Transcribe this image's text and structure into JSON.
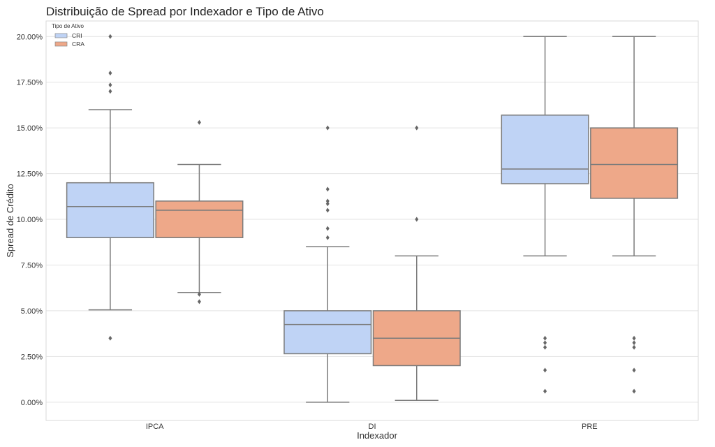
{
  "chart_data": {
    "type": "box",
    "title": "Distribuição de Spread por Indexador e Tipo de Ativo",
    "xlabel": "Indexador",
    "ylabel": "Spread de Crédito",
    "categories": [
      "IPCA",
      "DI",
      "PRE"
    ],
    "ylim": [
      -1.0,
      20.85
    ],
    "yticks": [
      0,
      2.5,
      5,
      7.5,
      10,
      12.5,
      15,
      17.5,
      20
    ],
    "ytick_labels": [
      "0.00%",
      "2.50%",
      "5.00%",
      "7.50%",
      "10.00%",
      "12.50%",
      "15.00%",
      "17.50%",
      "20.00%"
    ],
    "grid": "horizontal",
    "legend": {
      "title": "Tipo de Ativo",
      "placement": "top-left"
    },
    "series": [
      {
        "name": "CRI",
        "color": "#bfd3f5",
        "boxes": [
          {
            "whislo": 5.05,
            "q1": 9.0,
            "med": 10.7,
            "q3": 12.0,
            "whishi": 16.0,
            "fliers": [
              3.5,
              17.0,
              17.35,
              18.0,
              20.0
            ]
          },
          {
            "whislo": 0.0,
            "q1": 2.65,
            "med": 4.25,
            "q3": 5.0,
            "whishi": 8.5,
            "fliers": [
              9.0,
              9.5,
              10.5,
              10.85,
              11.0,
              11.65,
              15.0
            ]
          },
          {
            "whislo": 8.0,
            "q1": 11.95,
            "med": 12.75,
            "q3": 15.7,
            "whishi": 20.0,
            "fliers": [
              0.6,
              1.75,
              3.0,
              3.25,
              3.5
            ]
          }
        ]
      },
      {
        "name": "CRA",
        "color": "#eea889",
        "boxes": [
          {
            "whislo": 6.0,
            "q1": 9.0,
            "med": 10.5,
            "q3": 11.0,
            "whishi": 13.0,
            "fliers": [
              5.5,
              5.9,
              15.3
            ]
          },
          {
            "whislo": 0.1,
            "q1": 2.0,
            "med": 3.5,
            "q3": 5.0,
            "whishi": 8.0,
            "fliers": [
              10.0,
              15.0
            ]
          },
          {
            "whislo": 8.0,
            "q1": 11.15,
            "med": 13.0,
            "q3": 15.0,
            "whishi": 20.0,
            "fliers": [
              0.6,
              1.75,
              3.0,
              3.25,
              3.5
            ]
          }
        ]
      }
    ]
  }
}
